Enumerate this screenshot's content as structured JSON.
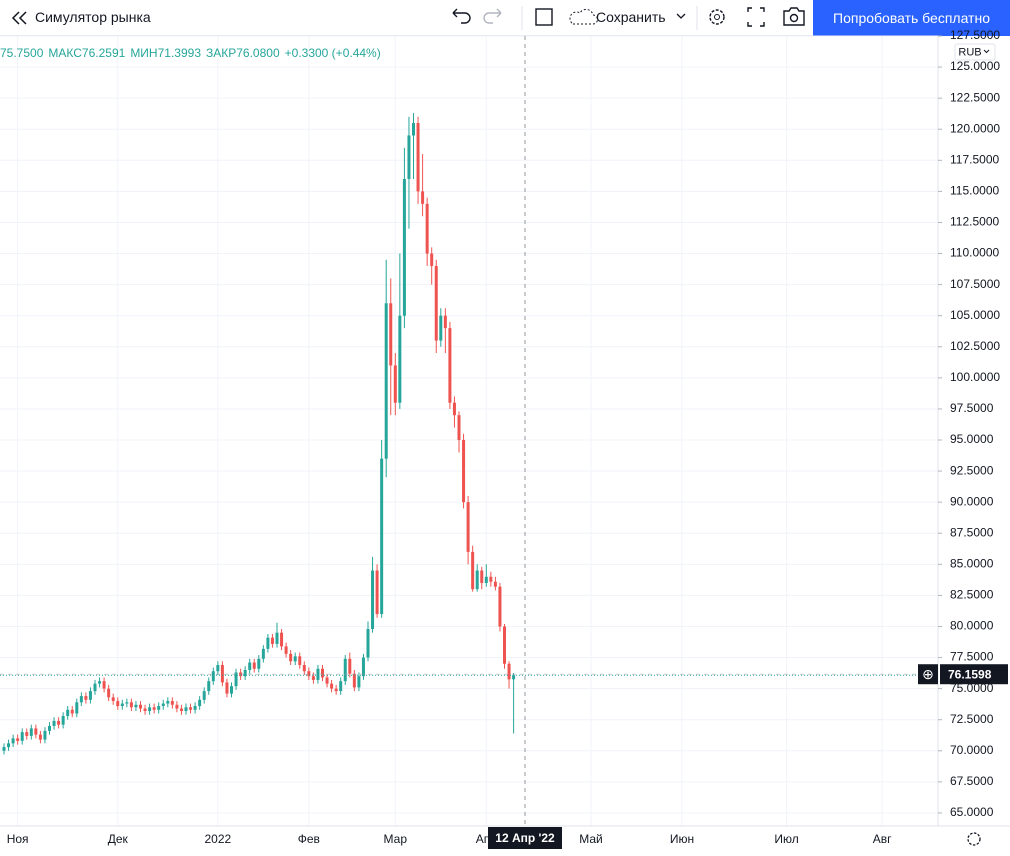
{
  "toolbar": {
    "title": "Симулятор рынка",
    "save": "Сохранить",
    "cta": "Попробовать бесплатно"
  },
  "legend": {
    "open": "75.7500",
    "high_label": "МАКС",
    "high": "76.2591",
    "low_label": "МИН",
    "low": "71.3993",
    "close_label": "ЗАКР",
    "close": "76.0800",
    "change": "+0.3300 (+0.44%)"
  },
  "currency": "RUB",
  "crosshair": {
    "date": "12 Апр '22",
    "price": 76.1598
  },
  "chart_data": {
    "type": "candlestick",
    "up_color": "#26a69a",
    "down_color": "#ef5350",
    "grid": true,
    "categories": [
      null,
      null,
      null,
      null,
      null,
      null,
      null,
      null,
      null,
      null,
      null,
      null,
      null,
      null,
      null,
      null,
      null,
      null,
      null,
      null,
      null,
      null,
      null,
      null,
      null,
      null,
      null,
      null,
      null,
      null,
      null,
      null,
      null,
      null,
      null,
      null,
      null,
      null,
      null,
      null,
      null,
      null,
      null,
      null,
      null,
      null,
      null,
      null,
      null,
      null,
      null,
      null,
      null,
      null,
      null,
      null,
      null,
      null,
      null,
      null,
      null,
      null,
      null,
      null,
      null,
      null,
      null,
      null,
      null,
      null,
      null,
      null,
      null,
      null,
      null,
      null,
      null,
      null,
      null,
      null,
      null,
      null,
      null,
      null,
      null,
      null,
      null,
      null,
      null,
      null,
      null,
      null,
      null,
      null,
      null,
      null,
      null,
      null,
      null,
      null,
      null,
      null,
      null,
      null,
      null,
      null,
      null,
      null,
      null,
      null,
      null,
      null,
      null
    ],
    "open": [
      70.0,
      70.3,
      70.6,
      71.0,
      70.8,
      71.5,
      71.2,
      71.8,
      71.3,
      70.9,
      71.6,
      72.0,
      72.4,
      72.1,
      72.8,
      73.3,
      73.0,
      73.9,
      74.4,
      74.1,
      74.8,
      75.4,
      75.6,
      75.0,
      74.3,
      74.0,
      73.6,
      73.8,
      73.9,
      73.5,
      73.7,
      73.4,
      73.2,
      73.5,
      73.3,
      73.6,
      73.8,
      74.0,
      73.7,
      73.4,
      73.2,
      73.5,
      73.3,
      73.6,
      74.1,
      74.8,
      75.6,
      76.4,
      76.9,
      75.5,
      74.6,
      75.2,
      76.3,
      76.0,
      76.5,
      77.1,
      76.6,
      77.4,
      78.2,
      79.1,
      78.6,
      79.5,
      78.4,
      77.8,
      77.2,
      77.6,
      76.9,
      76.4,
      76.0,
      75.7,
      76.6,
      75.9,
      75.4,
      75.0,
      74.8,
      75.6,
      77.4,
      76.2,
      75.1,
      76.0,
      77.5,
      79.8,
      84.5,
      81.0,
      93.5,
      106.0,
      101.0,
      98.0,
      105.0,
      116.0,
      119.5,
      120.5,
      115.0,
      114.0,
      110.0,
      109.0,
      103.0,
      105.0,
      104.0,
      98.0,
      97.0,
      95.0,
      90.0,
      86.0,
      83.0,
      84.5,
      83.5,
      84.0,
      83.6,
      83.2,
      80.0,
      77.0,
      75.75
    ],
    "high": [
      70.6,
      70.9,
      71.3,
      71.3,
      71.8,
      71.8,
      72.1,
      72.1,
      71.6,
      71.9,
      72.3,
      72.7,
      72.7,
      73.1,
      73.6,
      73.6,
      74.2,
      74.7,
      74.7,
      75.1,
      75.7,
      75.9,
      75.9,
      75.3,
      74.6,
      74.3,
      74.1,
      74.2,
      74.2,
      74.0,
      74.0,
      73.7,
      73.8,
      73.8,
      73.9,
      74.1,
      74.3,
      74.3,
      74.0,
      73.7,
      73.8,
      73.8,
      73.9,
      74.4,
      75.1,
      75.9,
      76.7,
      77.2,
      77.2,
      75.8,
      75.5,
      76.6,
      76.6,
      76.8,
      77.4,
      77.4,
      77.7,
      78.5,
      79.4,
      79.4,
      80.3,
      79.8,
      78.7,
      78.1,
      77.9,
      77.9,
      77.2,
      76.7,
      76.3,
      76.9,
      76.9,
      76.2,
      75.7,
      75.3,
      75.9,
      77.7,
      77.9,
      76.5,
      76.3,
      77.8,
      80.4,
      85.6,
      85.0,
      95.0,
      109.5,
      108.0,
      102.0,
      110.0,
      118.5,
      121.0,
      121.3,
      121.0,
      118.0,
      114.5,
      110.5,
      109.5,
      105.6,
      105.6,
      104.5,
      98.5,
      97.3,
      95.5,
      90.5,
      86.5,
      85.0,
      84.8,
      85.0,
      84.4,
      84.0,
      83.5,
      80.2,
      77.2,
      76.2591
    ],
    "low": [
      69.7,
      70.0,
      70.3,
      70.5,
      70.5,
      70.9,
      70.9,
      71.0,
      70.6,
      70.6,
      71.3,
      71.7,
      71.8,
      71.8,
      72.5,
      72.7,
      72.7,
      73.6,
      73.8,
      73.8,
      74.5,
      75.1,
      74.7,
      74.0,
      73.7,
      73.3,
      73.3,
      73.5,
      73.2,
      73.2,
      73.1,
      72.9,
      72.9,
      73.0,
      73.0,
      73.3,
      73.5,
      73.4,
      73.1,
      72.9,
      72.9,
      73.0,
      73.0,
      73.3,
      73.8,
      74.5,
      75.3,
      76.1,
      75.2,
      74.3,
      74.3,
      74.9,
      75.7,
      75.7,
      76.2,
      76.3,
      76.3,
      77.1,
      77.9,
      78.3,
      78.3,
      78.1,
      77.5,
      76.9,
      76.9,
      76.6,
      76.1,
      75.7,
      75.4,
      75.4,
      75.6,
      75.1,
      74.7,
      74.5,
      74.5,
      75.3,
      75.9,
      74.8,
      74.8,
      75.7,
      77.2,
      79.5,
      80.7,
      80.7,
      92.0,
      97.0,
      97.0,
      97.5,
      104.0,
      112.0,
      116.0,
      114.0,
      113.0,
      109.0,
      107.5,
      102.0,
      102.5,
      102.0,
      97.5,
      96.0,
      94.0,
      89.5,
      85.0,
      82.8,
      82.8,
      83.0,
      83.2,
      83.2,
      82.9,
      79.6,
      76.6,
      75.0,
      71.3993
    ],
    "close": [
      70.3,
      70.6,
      71.0,
      70.8,
      71.5,
      71.2,
      71.8,
      71.3,
      70.9,
      71.6,
      72.0,
      72.4,
      72.1,
      72.8,
      73.3,
      73.0,
      73.9,
      74.4,
      74.1,
      74.8,
      75.4,
      75.6,
      75.0,
      74.3,
      74.0,
      73.6,
      73.8,
      73.9,
      73.5,
      73.7,
      73.4,
      73.2,
      73.5,
      73.3,
      73.6,
      73.8,
      74.0,
      73.7,
      73.4,
      73.2,
      73.5,
      73.3,
      73.6,
      74.1,
      74.8,
      75.6,
      76.4,
      76.9,
      75.5,
      74.6,
      75.2,
      76.3,
      76.0,
      76.5,
      77.1,
      76.6,
      77.4,
      78.2,
      79.1,
      78.6,
      79.5,
      78.4,
      77.8,
      77.2,
      77.6,
      76.9,
      76.4,
      76.0,
      75.7,
      76.6,
      75.9,
      75.4,
      75.0,
      74.8,
      75.6,
      77.4,
      76.2,
      75.1,
      76.0,
      77.5,
      79.8,
      84.5,
      81.0,
      93.5,
      106.0,
      101.0,
      98.0,
      105.0,
      116.0,
      119.5,
      120.5,
      115.0,
      114.0,
      110.0,
      109.0,
      103.0,
      105.0,
      104.0,
      98.0,
      97.0,
      95.0,
      90.0,
      86.0,
      83.0,
      84.5,
      83.5,
      84.0,
      83.6,
      83.2,
      80.0,
      77.0,
      75.75,
      76.08
    ],
    "xticks": [
      {
        "value": 3,
        "label": "Ноя"
      },
      {
        "value": 25,
        "label": "Дек"
      },
      {
        "value": 47,
        "label": "2022"
      },
      {
        "value": 67,
        "label": "Фев"
      },
      {
        "value": 86,
        "label": "Мар"
      },
      {
        "value": 106,
        "label": "Апр"
      },
      {
        "value": 129,
        "label": "Май"
      },
      {
        "value": 149,
        "label": "Июн"
      },
      {
        "value": 172,
        "label": "Июл"
      },
      {
        "value": 193,
        "label": "Авг"
      }
    ],
    "ylim": [
      63.95,
      127.5
    ],
    "yticks": [
      {
        "value": 65,
        "label": "65.0000"
      },
      {
        "value": 67.5,
        "label": "67.5000"
      },
      {
        "value": 70,
        "label": "70.0000"
      },
      {
        "value": 72.5,
        "label": "72.5000"
      },
      {
        "value": 75,
        "label": "75.0000"
      },
      {
        "value": 77.5,
        "label": "77.5000"
      },
      {
        "value": 80,
        "label": "80.0000"
      },
      {
        "value": 82.5,
        "label": "82.5000"
      },
      {
        "value": 85,
        "label": "85.0000"
      },
      {
        "value": 87.5,
        "label": "87.5000"
      },
      {
        "value": 90,
        "label": "90.0000"
      },
      {
        "value": 92.5,
        "label": "92.5000"
      },
      {
        "value": 95,
        "label": "95.0000"
      },
      {
        "value": 97.5,
        "label": "97.5000"
      },
      {
        "value": 100,
        "label": "100.0000"
      },
      {
        "value": 102.5,
        "label": "102.5000"
      },
      {
        "value": 105,
        "label": "105.0000"
      },
      {
        "value": 107.5,
        "label": "107.5000"
      },
      {
        "value": 110,
        "label": "110.0000"
      },
      {
        "value": 112.5,
        "label": "112.5000"
      },
      {
        "value": 115,
        "label": "115.0000"
      },
      {
        "value": 117.5,
        "label": "117.5000"
      },
      {
        "value": 120,
        "label": "120.0000"
      },
      {
        "value": 122.5,
        "label": "122.5000"
      },
      {
        "value": 125,
        "label": "125.0000"
      },
      {
        "value": 127.5,
        "label": "127.5000"
      }
    ]
  }
}
